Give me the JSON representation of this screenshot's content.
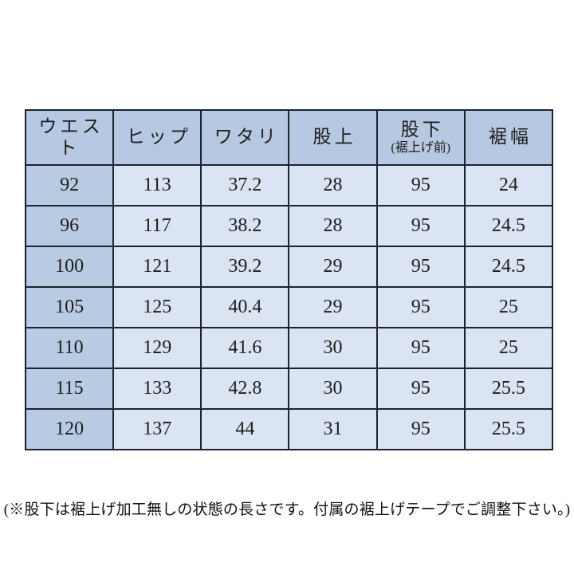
{
  "colors": {
    "header_bg": "#b7c9e2",
    "first_column_bg": "#b9cbe3",
    "cell_bg": "#dbe4f2",
    "border": "#1d232e",
    "text": "#1c1c1c",
    "page_bg": "#ffffff"
  },
  "chart_data": {
    "type": "table",
    "columns": [
      {
        "label": "ウエスト"
      },
      {
        "label": "ヒップ"
      },
      {
        "label": "ワタリ"
      },
      {
        "label": "股上"
      },
      {
        "label": "股下",
        "sublabel": "(裾上げ前)"
      },
      {
        "label": "裾幅"
      }
    ],
    "rows": [
      [
        "92",
        "113",
        "37.2",
        "28",
        "95",
        "24"
      ],
      [
        "96",
        "117",
        "38.2",
        "28",
        "95",
        "24.5"
      ],
      [
        "100",
        "121",
        "39.2",
        "29",
        "95",
        "24.5"
      ],
      [
        "105",
        "125",
        "40.4",
        "29",
        "95",
        "25"
      ],
      [
        "110",
        "129",
        "41.6",
        "30",
        "95",
        "25"
      ],
      [
        "115",
        "133",
        "42.8",
        "30",
        "95",
        "25.5"
      ],
      [
        "120",
        "137",
        "44",
        "31",
        "95",
        "25.5"
      ]
    ]
  },
  "footnote": "(※股下は裾上げ加工無しの状態の長さです。付属の裾上げテープでご調整下さい。)"
}
